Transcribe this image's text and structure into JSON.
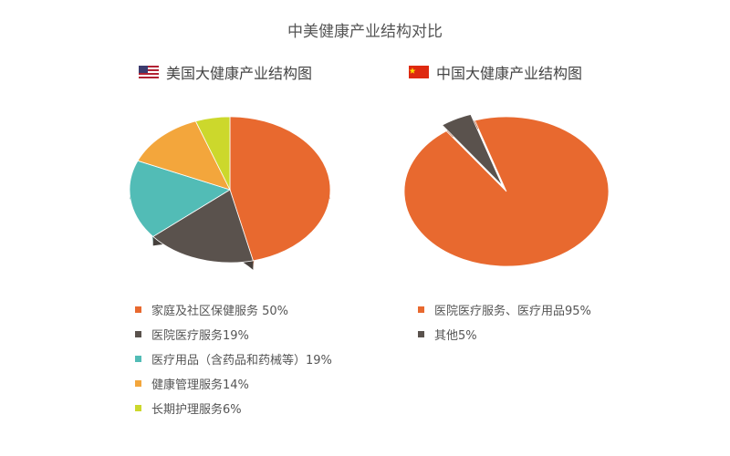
{
  "title": "中美健康产业结构对比",
  "chart_data": [
    {
      "type": "pie",
      "title": "美国大健康产业结构图",
      "flag_icon": "us-flag-icon",
      "categories": [
        "家庭及社区保健服务 50%",
        "医院医疗服务19%",
        "医疗用品（含药品和药械等）19%",
        "健康管理服务14%",
        "长期护理服务6%"
      ],
      "values": [
        50,
        19,
        19,
        14,
        6
      ],
      "colors": [
        "#e8692f",
        "#5a524d",
        "#52bcb6",
        "#f3a63c",
        "#ccd82c"
      ],
      "legend_position": "bottom"
    },
    {
      "type": "pie",
      "title": "中国大健康产业结构图",
      "flag_icon": "china-flag-icon",
      "categories": [
        "医院医疗服务、医疗用品95%",
        "其他5%"
      ],
      "values": [
        95,
        5
      ],
      "colors": [
        "#e8692f",
        "#5a524d"
      ],
      "exploded": [
        false,
        true
      ],
      "legend_position": "bottom"
    }
  ]
}
